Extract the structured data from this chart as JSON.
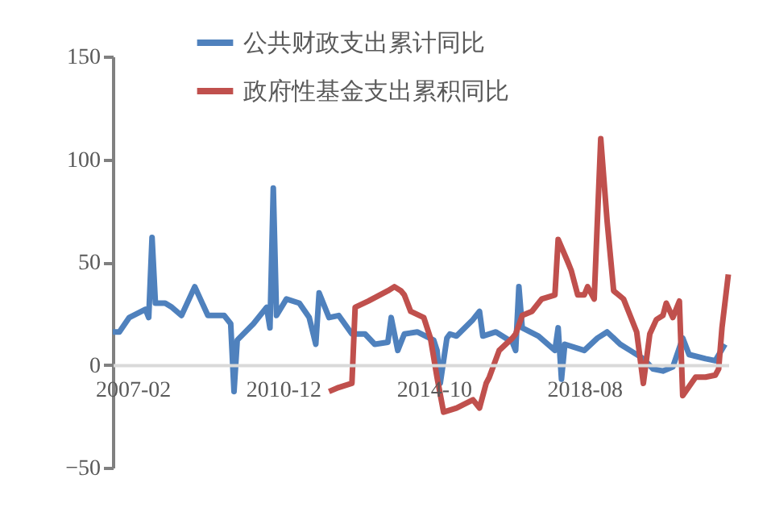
{
  "chart_data": {
    "type": "line",
    "xlim": [
      "2006-08",
      "2022-04"
    ],
    "xticks": [
      "2007-02",
      "2010-12",
      "2014-10",
      "2018-08"
    ],
    "ylim": [
      -50,
      150
    ],
    "yticks": [
      -50,
      0,
      50,
      100,
      150
    ],
    "grid": false,
    "legend": "top",
    "line_style": "solid",
    "marker": "none",
    "series": [
      {
        "name": "公共财政支出累计同比",
        "color": "#4f81bd",
        "x": [
          "2006-08",
          "2006-10",
          "2007-01",
          "2007-06",
          "2007-07",
          "2007-08",
          "2007-09",
          "2007-12",
          "2008-02",
          "2008-05",
          "2008-09",
          "2009-01",
          "2009-06",
          "2009-08",
          "2009-09",
          "2009-10",
          "2010-03",
          "2010-07",
          "2010-08",
          "2010-09",
          "2010-10",
          "2011-01",
          "2011-05",
          "2011-08",
          "2011-10",
          "2011-11",
          "2012-02",
          "2012-05",
          "2012-09",
          "2013-01",
          "2013-04",
          "2013-08",
          "2013-09",
          "2013-11",
          "2014-01",
          "2014-05",
          "2014-10",
          "2014-11",
          "2014-12",
          "2015-02",
          "2015-03",
          "2015-05",
          "2015-10",
          "2015-12",
          "2016-01",
          "2016-05",
          "2016-10",
          "2016-11",
          "2016-12",
          "2017-01",
          "2017-06",
          "2017-11",
          "2017-12",
          "2018-01",
          "2018-02",
          "2018-08",
          "2018-12",
          "2019-03",
          "2019-07",
          "2019-10",
          "2020-02",
          "2020-05",
          "2020-08",
          "2020-11",
          "2021-02",
          "2021-04",
          "2021-09",
          "2021-12",
          "2022-03"
        ],
        "values": [
          16,
          16,
          23,
          27,
          23,
          62,
          30,
          30,
          28,
          24,
          38,
          24,
          24,
          20,
          -13,
          12,
          20,
          28,
          18,
          86,
          24,
          32,
          30,
          23,
          10,
          35,
          23,
          24,
          15,
          15,
          10,
          11,
          23,
          7,
          15,
          16,
          12,
          7,
          -9,
          13,
          15,
          14,
          22,
          26,
          14,
          16,
          11,
          7,
          38,
          18,
          14,
          7,
          18,
          -7,
          10,
          7,
          13,
          16,
          10,
          7,
          3,
          -2,
          -3,
          -1,
          13,
          5,
          3,
          2,
          10
        ]
      },
      {
        "name": "政府性基金支出累积同比",
        "color": "#c0504d",
        "x": [
          "2012-02",
          "2012-05",
          "2012-09",
          "2012-10",
          "2013-02",
          "2013-08",
          "2013-10",
          "2013-12",
          "2014-01",
          "2014-03",
          "2014-07",
          "2014-09",
          "2014-11",
          "2015-01",
          "2015-05",
          "2015-10",
          "2015-12",
          "2016-02",
          "2016-03",
          "2016-06",
          "2016-10",
          "2016-11",
          "2017-01",
          "2017-04",
          "2017-07",
          "2017-11",
          "2017-12",
          "2018-03",
          "2018-04",
          "2018-06",
          "2018-08",
          "2018-09",
          "2018-11",
          "2019-01",
          "2019-03",
          "2019-05",
          "2019-08",
          "2019-10",
          "2019-12",
          "2020-02",
          "2020-04",
          "2020-06",
          "2020-08",
          "2020-09",
          "2020-11",
          "2021-01",
          "2021-02",
          "2021-06",
          "2021-09",
          "2021-12",
          "2022-01",
          "2022-02",
          "2022-04"
        ],
        "values": [
          -13,
          -11,
          -9,
          28,
          31,
          36,
          38,
          36,
          34,
          26,
          23,
          13,
          -6,
          -23,
          -21,
          -17,
          -21,
          -9,
          -6,
          7,
          13,
          15,
          24,
          26,
          32,
          34,
          61,
          50,
          46,
          34,
          34,
          38,
          32,
          110,
          70,
          36,
          32,
          24,
          16,
          -9,
          15,
          22,
          24,
          30,
          23,
          31,
          -15,
          -6,
          -6,
          -5,
          -2,
          18,
          44
        ]
      }
    ]
  }
}
